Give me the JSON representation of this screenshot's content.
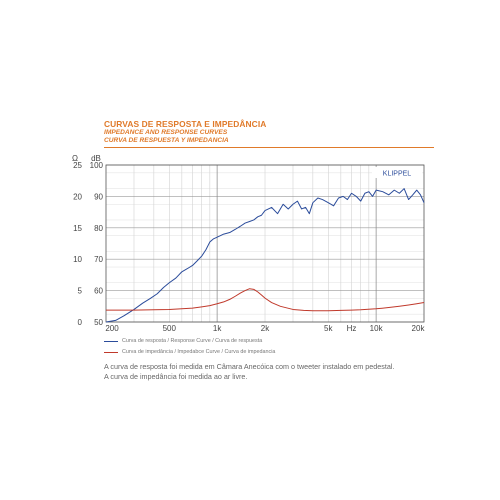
{
  "header": {
    "title": "CURVAS DE RESPOSTA E IMPEDÂNCIA",
    "subtitle_en": "IMPEDANCE AND RESPONSE CURVES",
    "subtitle_es": "CURVA DE RESPUESTA Y IMPEDANCIA"
  },
  "chart_data": {
    "type": "line",
    "left_axis_unit": "Ω",
    "right_axis_unit": "dB",
    "x_unit": "Hz",
    "x_scale": "log",
    "grid": true,
    "xlim": [
      200,
      20000
    ],
    "impedance_ticks": [
      "25",
      "20",
      "15",
      "10",
      "5",
      "0"
    ],
    "db_ticks": [
      "100",
      "90",
      "80",
      "70",
      "60",
      "50"
    ],
    "x_ticks": [
      {
        "value": 200,
        "label": "200"
      },
      {
        "value": 500,
        "label": "500"
      },
      {
        "value": 1000,
        "label": "1k"
      },
      {
        "value": 2000,
        "label": "2k"
      },
      {
        "value": 5000,
        "label": "5k"
      },
      {
        "value": 7000,
        "label": "Hz"
      },
      {
        "value": 10000,
        "label": "10k"
      },
      {
        "value": 20000,
        "label": "20k"
      }
    ],
    "watermark": "KLIPPEL",
    "ylim_db": [
      50,
      100
    ],
    "ylim_impedance": [
      0,
      25
    ],
    "series": [
      {
        "name": "Curva de resposta / Response Curve / Curva de respuesta",
        "axis": "dB",
        "color": "#2b4c9b",
        "x": [
          200,
          230,
          260,
          300,
          340,
          380,
          420,
          460,
          500,
          550,
          600,
          650,
          700,
          750,
          800,
          850,
          900,
          950,
          1000,
          1100,
          1200,
          1300,
          1400,
          1500,
          1600,
          1700,
          1800,
          1900,
          2000,
          2200,
          2400,
          2600,
          2800,
          3000,
          3200,
          3400,
          3600,
          3800,
          4000,
          4300,
          4600,
          5000,
          5400,
          5800,
          6200,
          6600,
          7000,
          7500,
          8000,
          8500,
          9000,
          9500,
          10000,
          11000,
          12000,
          13000,
          14000,
          15000,
          16000,
          17000,
          18000,
          19000,
          20000
        ],
        "y": [
          49,
          50.5,
          52,
          54,
          56,
          57.5,
          59,
          61,
          62.5,
          64,
          66,
          67,
          68,
          69.5,
          71,
          73,
          75.5,
          76.5,
          77,
          78,
          78.5,
          79.5,
          80.5,
          81.5,
          82,
          82.5,
          83.5,
          84,
          85.5,
          86.5,
          84.5,
          87.5,
          86,
          87.5,
          88.5,
          86,
          86.5,
          84.5,
          88,
          89.5,
          89,
          88,
          87,
          89.5,
          90,
          89,
          91,
          90,
          88.5,
          91,
          91.5,
          90,
          92,
          91.5,
          90.5,
          92,
          91,
          92.5,
          89,
          90.5,
          92,
          90.5,
          88
        ]
      },
      {
        "name": "Curva de impedância / Impedabce Curve / Curva de impedancia",
        "axis": "impedance",
        "color": "#c0392b",
        "x": [
          200,
          300,
          400,
          500,
          600,
          700,
          800,
          900,
          1000,
          1100,
          1200,
          1300,
          1400,
          1500,
          1600,
          1700,
          1800,
          1900,
          2000,
          2200,
          2500,
          3000,
          3500,
          4000,
          5000,
          6000,
          7000,
          8000,
          10000,
          12000,
          14000,
          16000,
          18000,
          20000
        ],
        "y": [
          1.9,
          1.9,
          1.95,
          2.0,
          2.1,
          2.2,
          2.4,
          2.6,
          2.9,
          3.2,
          3.6,
          4.1,
          4.6,
          5.0,
          5.3,
          5.2,
          4.8,
          4.3,
          3.8,
          3.1,
          2.5,
          2.0,
          1.85,
          1.8,
          1.8,
          1.85,
          1.9,
          1.95,
          2.1,
          2.3,
          2.5,
          2.7,
          2.9,
          3.1
        ]
      }
    ]
  },
  "note": {
    "line1": "A curva de resposta foi medida em Câmara Anecóica com o tweeter instalado em pedestal.",
    "line2": "A curva de impedância foi medida ao ar livre."
  }
}
